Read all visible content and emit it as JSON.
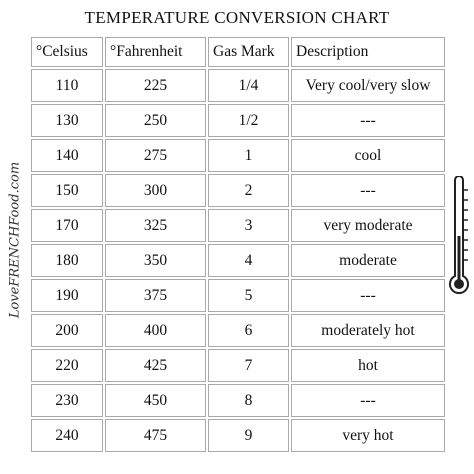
{
  "header": {
    "title": "TEMPERATURE CONVERSION CHART"
  },
  "watermark": "LoveFRENCHFood.com",
  "table": {
    "columns": [
      "°Celsius",
      "°Fahrenheit",
      "Gas Mark",
      "Description"
    ],
    "rows": [
      [
        "110",
        "225",
        "1/4",
        "Very cool/very slow"
      ],
      [
        "130",
        "250",
        "1/2",
        "---"
      ],
      [
        "140",
        "275",
        "1",
        "cool"
      ],
      [
        "150",
        "300",
        "2",
        "---"
      ],
      [
        "170",
        "325",
        "3",
        "very moderate"
      ],
      [
        "180",
        "350",
        "4",
        "moderate"
      ],
      [
        "190",
        "375",
        "5",
        "---"
      ],
      [
        "200",
        "400",
        "6",
        "moderately hot"
      ],
      [
        "220",
        "425",
        "7",
        "hot"
      ],
      [
        "230",
        "450",
        "8",
        "---"
      ],
      [
        "240",
        "475",
        "9",
        "very hot"
      ]
    ]
  }
}
